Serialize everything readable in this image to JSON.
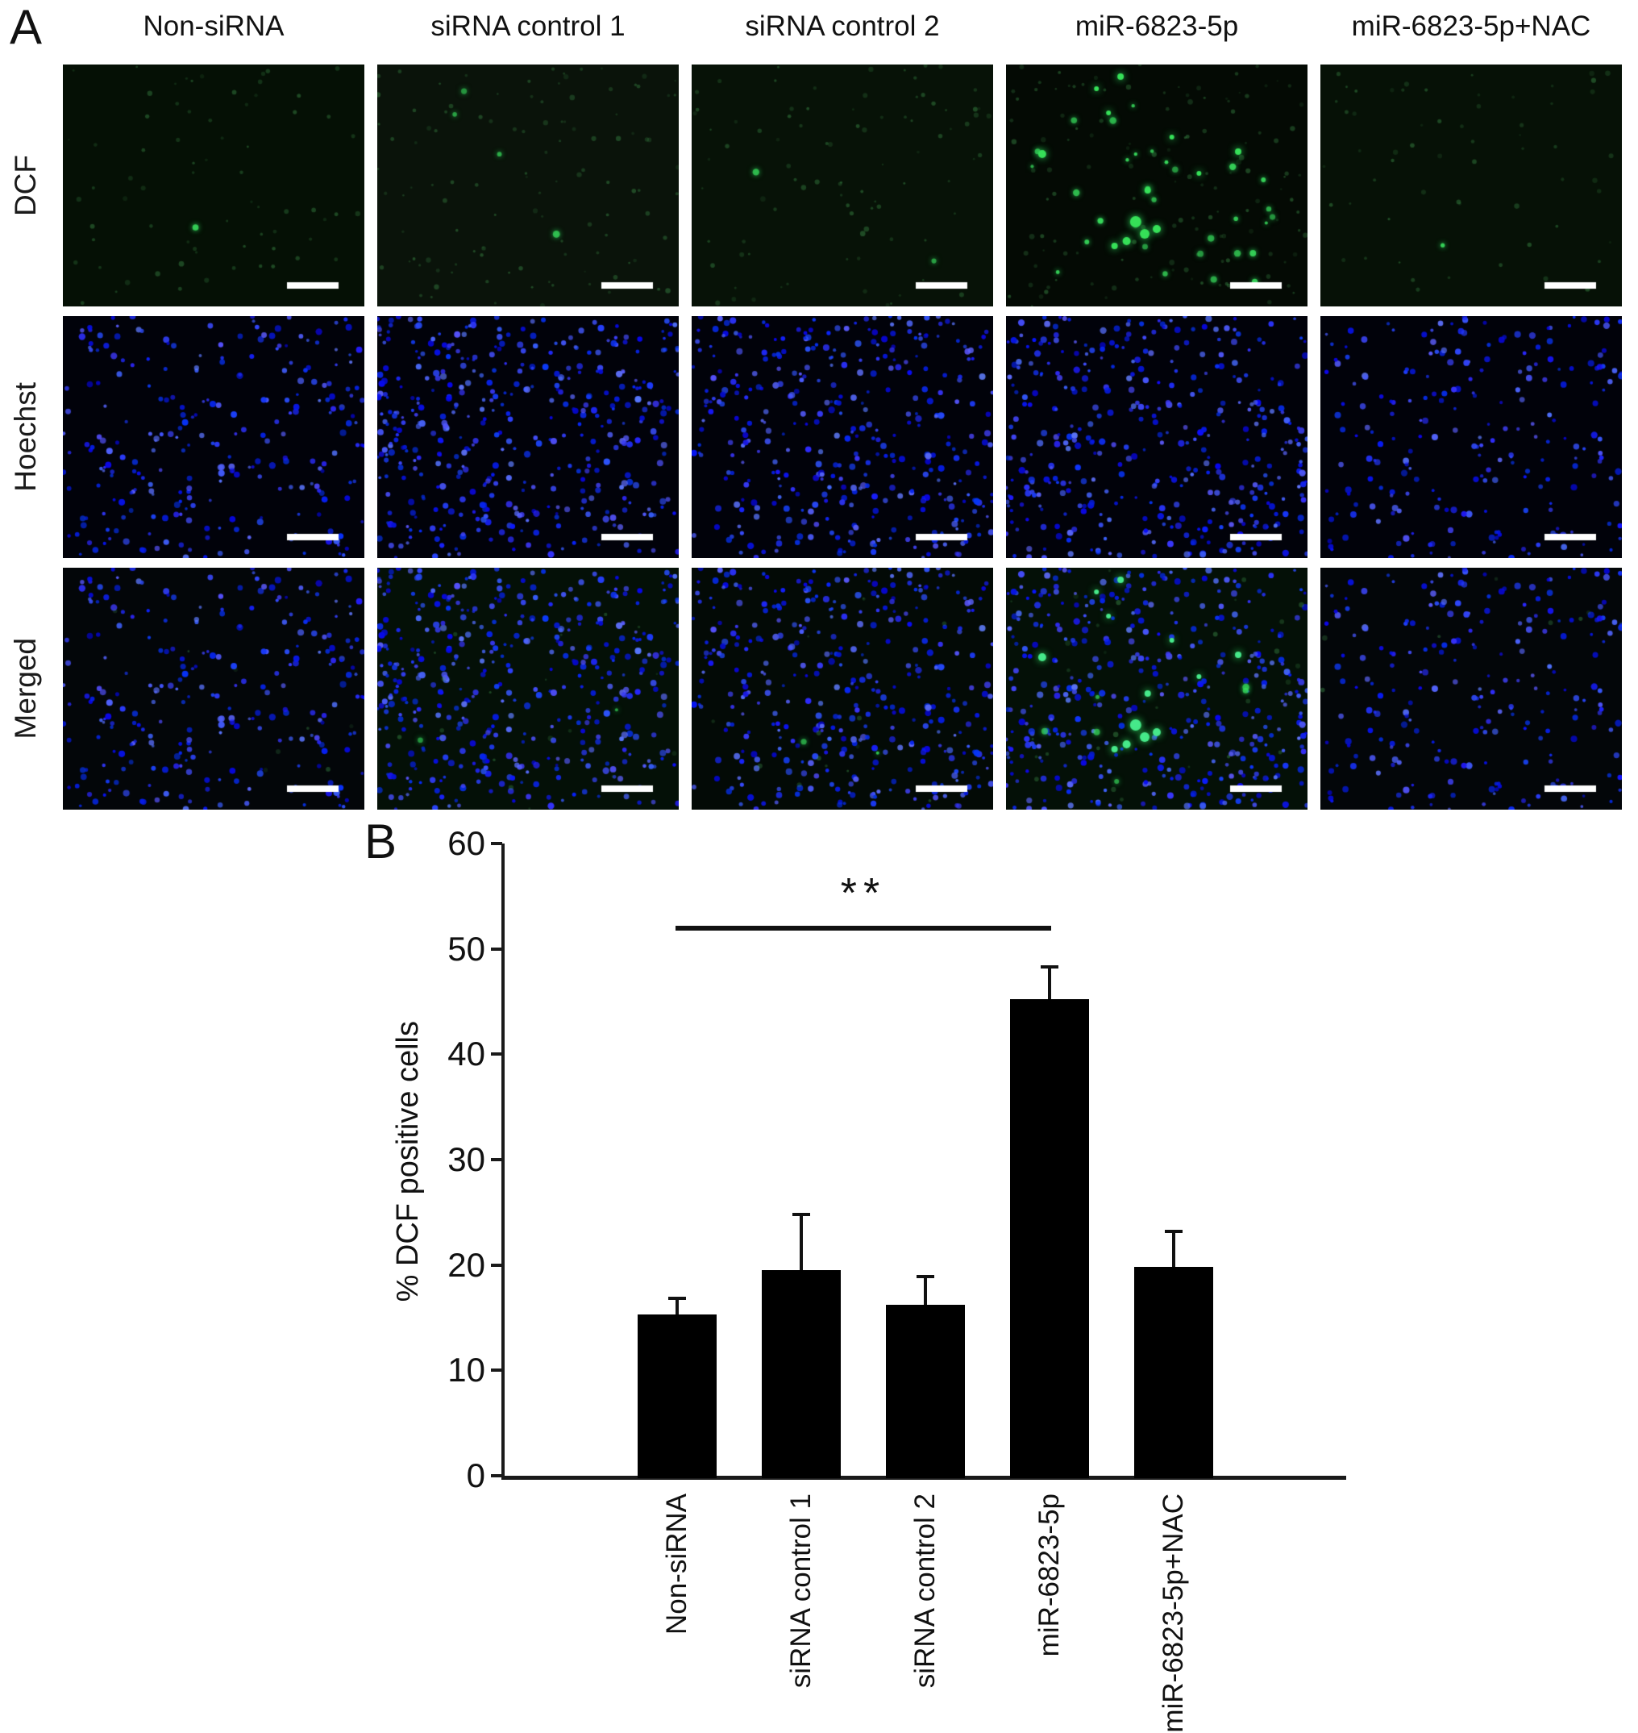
{
  "figure": {
    "panel_a": {
      "label": "A",
      "column_headers": [
        "Non-siRNA",
        "siRNA control 1",
        "siRNA control 2",
        "miR-6823-5p",
        "miR-6823-5p+NAC"
      ],
      "row_labels": [
        "DCF",
        "Hoechst",
        "Merged"
      ],
      "scale_bar": "white-scale-bar",
      "mir_bright_spots": [
        [
          0.38,
          0.05,
          4
        ],
        [
          0.12,
          0.37,
          5
        ],
        [
          0.77,
          0.36,
          4
        ],
        [
          0.47,
          0.52,
          4
        ],
        [
          0.43,
          0.65,
          7
        ],
        [
          0.46,
          0.7,
          6
        ],
        [
          0.4,
          0.73,
          5
        ],
        [
          0.5,
          0.68,
          5
        ],
        [
          0.36,
          0.75,
          4
        ],
        [
          0.55,
          0.3,
          3
        ],
        [
          0.34,
          0.2,
          3
        ],
        [
          0.64,
          0.45,
          3
        ],
        [
          0.3,
          0.1,
          3
        ]
      ],
      "tiles": [
        {
          "row": "DCF",
          "col": "Non-siRNA",
          "bg": "#051005",
          "blue": 0,
          "green_faint": 70,
          "green_bright": 1,
          "seed_blue": 11,
          "seed_green": 21
        },
        {
          "row": "DCF",
          "col": "siRNA control 1",
          "bg": "#0a130a",
          "blue": 0,
          "green_faint": 110,
          "green_bright": 4,
          "seed_blue": 12,
          "seed_green": 22
        },
        {
          "row": "DCF",
          "col": "siRNA control 2",
          "bg": "#071207",
          "blue": 0,
          "green_faint": 90,
          "green_bright": 2,
          "seed_blue": 13,
          "seed_green": 23
        },
        {
          "row": "DCF",
          "col": "miR-6823-5p",
          "bg": "#040a04",
          "blue": 0,
          "green_faint": 130,
          "green_bright": 30,
          "spots_ref": "mir_bright_spots",
          "seed_blue": 14,
          "seed_green": 24
        },
        {
          "row": "DCF",
          "col": "miR-6823-5p+NAC",
          "bg": "#061106",
          "blue": 0,
          "green_faint": 60,
          "green_bright": 1,
          "seed_blue": 15,
          "seed_green": 25
        },
        {
          "row": "Hoechst",
          "col": "Non-siRNA",
          "bg": "#01020a",
          "blue": 260,
          "green_faint": 0,
          "green_bright": 0,
          "seed_blue": 11,
          "seed_green": 21
        },
        {
          "row": "Hoechst",
          "col": "siRNA control 1",
          "bg": "#01020a",
          "blue": 430,
          "green_faint": 0,
          "green_bright": 0,
          "seed_blue": 12,
          "seed_green": 22
        },
        {
          "row": "Hoechst",
          "col": "siRNA control 2",
          "bg": "#01020a",
          "blue": 380,
          "green_faint": 0,
          "green_bright": 0,
          "seed_blue": 13,
          "seed_green": 23
        },
        {
          "row": "Hoechst",
          "col": "miR-6823-5p",
          "bg": "#01020a",
          "blue": 400,
          "green_faint": 0,
          "green_bright": 0,
          "seed_blue": 14,
          "seed_green": 24
        },
        {
          "row": "Hoechst",
          "col": "miR-6823-5p+NAC",
          "bg": "#01020a",
          "blue": 230,
          "green_faint": 0,
          "green_bright": 0,
          "seed_blue": 15,
          "seed_green": 25
        },
        {
          "row": "Merged",
          "col": "Non-siRNA",
          "bg": "#030609",
          "blue": 260,
          "green_faint": 8,
          "green_bright": 0,
          "seed_blue": 11,
          "seed_green": 31
        },
        {
          "row": "Merged",
          "col": "siRNA control 1",
          "bg": "#041007",
          "blue": 430,
          "green_faint": 20,
          "green_bright": 2,
          "seed_blue": 12,
          "seed_green": 32
        },
        {
          "row": "Merged",
          "col": "siRNA control 2",
          "bg": "#030a06",
          "blue": 380,
          "green_faint": 15,
          "green_bright": 2,
          "seed_blue": 13,
          "seed_green": 33
        },
        {
          "row": "Merged",
          "col": "miR-6823-5p",
          "bg": "#041007",
          "blue": 400,
          "green_faint": 30,
          "green_bright": 6,
          "spots_ref": "mir_bright_spots",
          "seed_blue": 14,
          "seed_green": 34
        },
        {
          "row": "Merged",
          "col": "miR-6823-5p+NAC",
          "bg": "#030609",
          "blue": 230,
          "green_faint": 8,
          "green_bright": 0,
          "seed_blue": 15,
          "seed_green": 35
        }
      ]
    },
    "panel_b": {
      "label": "B"
    }
  },
  "chart_data": {
    "type": "bar",
    "title": "",
    "xlabel": "",
    "ylabel": "% DCF positive cells",
    "categories": [
      "Non-siRNA",
      "siRNA control 1",
      "siRNA control 2",
      "miR-6823-5p",
      "miR-6823-5p+NAC"
    ],
    "values": [
      15.3,
      19.5,
      16.2,
      45.2,
      19.8
    ],
    "errors": [
      1.5,
      5.3,
      2.7,
      3.1,
      3.4
    ],
    "ylim": [
      0,
      60
    ],
    "yticks": [
      0,
      10,
      20,
      30,
      40,
      50,
      60
    ],
    "grid": false,
    "legend": "none",
    "bar_color": "#000000",
    "significance": {
      "label": "**",
      "from": "Non-siRNA",
      "to": "miR-6823-5p",
      "y_value": 52
    }
  }
}
